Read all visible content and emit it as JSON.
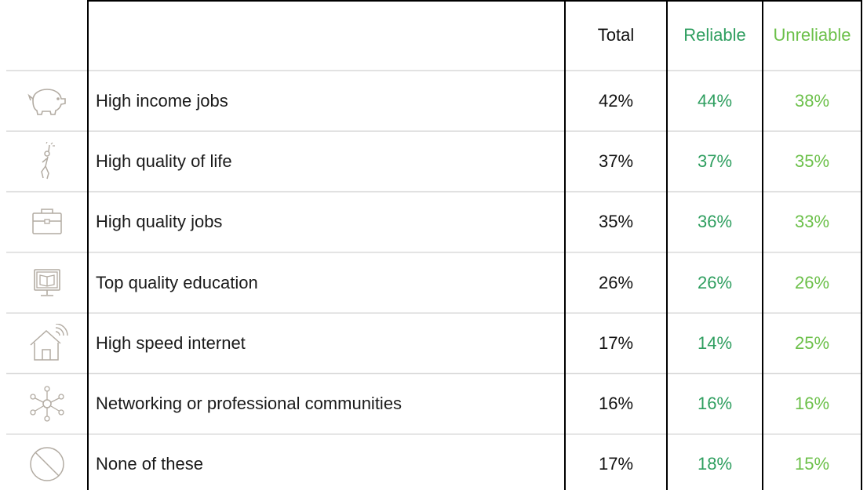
{
  "colors": {
    "total": "#111111",
    "reliable": "#2e9e5f",
    "unreliable": "#6cc04a",
    "label": "#1a1a1a",
    "icon": "#b2aba2",
    "grid": "#d9d9d9",
    "border": "#000000"
  },
  "chart_data": {
    "type": "table",
    "columns": [
      "Total",
      "Reliable",
      "Unreliable"
    ],
    "rows": [
      {
        "icon": "piggy-bank-icon",
        "label": "High income jobs",
        "total": "42%",
        "reliable": "44%",
        "unreliable": "38%"
      },
      {
        "icon": "reaching-person-icon",
        "label": "High quality of life",
        "total": "37%",
        "reliable": "37%",
        "unreliable": "35%"
      },
      {
        "icon": "briefcase-icon",
        "label": "High quality jobs",
        "total": "35%",
        "reliable": "36%",
        "unreliable": "33%"
      },
      {
        "icon": "monitor-book-icon",
        "label": "Top quality education",
        "total": "26%",
        "reliable": "26%",
        "unreliable": "26%"
      },
      {
        "icon": "house-wifi-icon",
        "label": "High speed internet",
        "total": "17%",
        "reliable": "14%",
        "unreliable": "25%"
      },
      {
        "icon": "network-icon",
        "label": "Networking or professional communities",
        "total": "16%",
        "reliable": "16%",
        "unreliable": "16%"
      },
      {
        "icon": "prohibited-icon",
        "label": "None of these",
        "total": "17%",
        "reliable": "18%",
        "unreliable": "15%"
      }
    ]
  }
}
